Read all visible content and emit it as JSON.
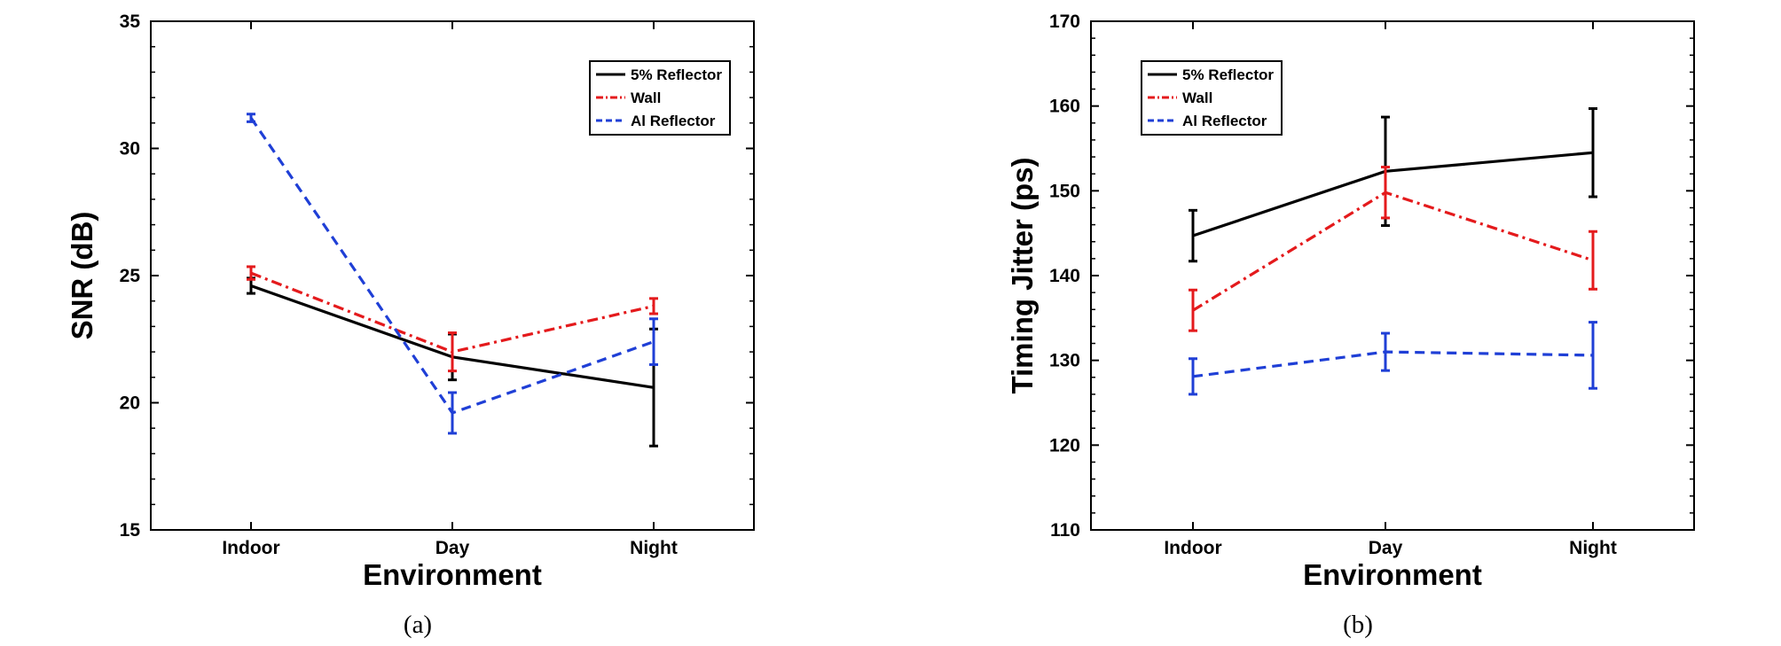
{
  "chart_data": [
    {
      "type": "line",
      "caption": "(a)",
      "xlabel": "Environment",
      "ylabel": "SNR (dB)",
      "categories": [
        "Indoor",
        "Day",
        "Night"
      ],
      "ylim": [
        15,
        35
      ],
      "yticks": [
        15,
        20,
        25,
        30,
        35
      ],
      "legend_position": "top-right",
      "series": [
        {
          "name": "5% Reflector",
          "color": "#000000",
          "dash": "solid",
          "values": [
            24.6,
            21.8,
            20.6
          ],
          "errors": [
            0.3,
            0.9,
            2.3
          ]
        },
        {
          "name": "Wall",
          "color": "#e41a1c",
          "dash": "dashdot",
          "values": [
            25.1,
            22.0,
            23.8
          ],
          "errors": [
            0.25,
            0.75,
            0.3
          ]
        },
        {
          "name": "Al Reflector",
          "color": "#1f3fd6",
          "dash": "dashed",
          "values": [
            31.2,
            19.6,
            22.4
          ],
          "errors": [
            0.15,
            0.8,
            0.9
          ]
        }
      ]
    },
    {
      "type": "line",
      "caption": "(b)",
      "xlabel": "Environment",
      "ylabel": "Timing Jitter (ps)",
      "categories": [
        "Indoor",
        "Day",
        "Night"
      ],
      "ylim": [
        110,
        170
      ],
      "yticks": [
        110,
        120,
        130,
        140,
        150,
        160,
        170
      ],
      "legend_position": "top-left",
      "series": [
        {
          "name": "5% Reflector",
          "color": "#000000",
          "dash": "solid",
          "values": [
            144.7,
            152.3,
            154.5
          ],
          "errors": [
            3.0,
            6.4,
            5.2
          ]
        },
        {
          "name": "Wall",
          "color": "#e41a1c",
          "dash": "dashdot",
          "values": [
            135.9,
            149.8,
            141.8
          ],
          "errors": [
            2.4,
            3.0,
            3.4
          ]
        },
        {
          "name": "Al Reflector",
          "color": "#1f3fd6",
          "dash": "dashed",
          "values": [
            128.1,
            131.0,
            130.6
          ],
          "errors": [
            2.1,
            2.2,
            3.9
          ]
        }
      ]
    }
  ]
}
